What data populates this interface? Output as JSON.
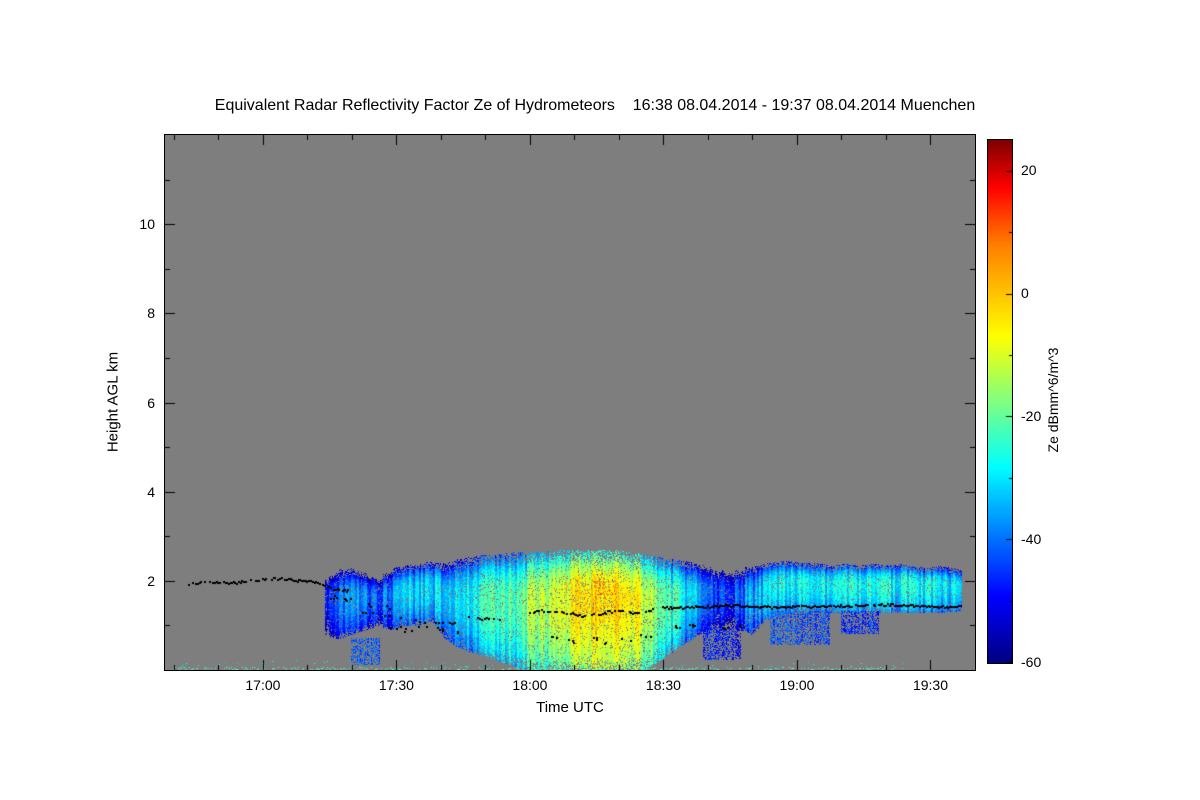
{
  "chart_data": {
    "type": "heatmap",
    "title": "Equivalent Radar Reflectivity Factor Ze of Hydrometeors    16:38 08.04.2014 - 19:37 08.04.2014 Muenchen",
    "xlabel": "Time UTC",
    "ylabel": "Height AGL km",
    "x_range_minutes": [
      998,
      1180
    ],
    "x_major_ticks": [
      {
        "t": 1020,
        "label": "17:00"
      },
      {
        "t": 1050,
        "label": "17:30"
      },
      {
        "t": 1080,
        "label": "18:00"
      },
      {
        "t": 1110,
        "label": "18:30"
      },
      {
        "t": 1140,
        "label": "19:00"
      },
      {
        "t": 1170,
        "label": "19:30"
      }
    ],
    "x_minor_step_min": 10,
    "y_range_km": [
      0,
      12
    ],
    "y_major_ticks": [
      {
        "v": 2,
        "label": "2"
      },
      {
        "v": 4,
        "label": "4"
      },
      {
        "v": 6,
        "label": "6"
      },
      {
        "v": 8,
        "label": "8"
      },
      {
        "v": 10,
        "label": "10"
      }
    ],
    "y_minor_ticks": [
      1,
      3,
      5,
      7,
      9,
      11
    ],
    "no_data_color": "#7e7e7e",
    "frame_color": "#000000",
    "colormap_stops": [
      [
        0.0,
        "#000080"
      ],
      [
        0.125,
        "#0000FF"
      ],
      [
        0.375,
        "#00FFFF"
      ],
      [
        0.625,
        "#FFFF00"
      ],
      [
        0.8,
        "#FF7F00"
      ],
      [
        0.91,
        "#FF0000"
      ],
      [
        1.0,
        "#7F0000"
      ]
    ],
    "colorbar": {
      "label": "Ze dBmm^6/m^3",
      "range": [
        -60,
        25
      ],
      "major_ticks": [
        {
          "v": 20,
          "label": "20"
        },
        {
          "v": 0,
          "label": "0"
        },
        {
          "v": -20,
          "label": "-20"
        },
        {
          "v": -40,
          "label": "-40"
        },
        {
          "v": -60,
          "label": "-60"
        }
      ],
      "minor_ticks": [
        10,
        -10,
        -30,
        -50
      ]
    },
    "echo_columns": [
      [
        1034,
        0.8,
        2.2,
        -46
      ],
      [
        1037,
        0.7,
        2.3,
        -40
      ],
      [
        1040,
        0.8,
        2.3,
        -36
      ],
      [
        1043,
        0.9,
        2.2,
        -40
      ],
      [
        1046,
        1.0,
        2.1,
        -42
      ],
      [
        1049,
        0.9,
        2.3,
        -37
      ],
      [
        1052,
        1.0,
        2.35,
        -33
      ],
      [
        1055,
        1.0,
        2.4,
        -30
      ],
      [
        1058,
        1.1,
        2.45,
        -32
      ],
      [
        1061,
        0.7,
        2.4,
        -30
      ],
      [
        1064,
        0.5,
        2.5,
        -28
      ],
      [
        1067,
        0.4,
        2.55,
        -26
      ],
      [
        1070,
        0.3,
        2.6,
        -25
      ],
      [
        1073,
        0.2,
        2.6,
        -23
      ],
      [
        1076,
        0.1,
        2.65,
        -21
      ],
      [
        1079,
        0.0,
        2.65,
        -18
      ],
      [
        1082,
        0.0,
        2.65,
        -14
      ],
      [
        1085,
        0.0,
        2.7,
        -11
      ],
      [
        1088,
        0.0,
        2.7,
        -8
      ],
      [
        1091,
        0.0,
        2.7,
        -5
      ],
      [
        1094,
        0.0,
        2.7,
        -4
      ],
      [
        1097,
        0.0,
        2.7,
        -3
      ],
      [
        1100,
        0.0,
        2.7,
        -5
      ],
      [
        1103,
        0.0,
        2.65,
        -8
      ],
      [
        1106,
        0.0,
        2.6,
        -11
      ],
      [
        1109,
        0.2,
        2.55,
        -17
      ],
      [
        1112,
        0.4,
        2.5,
        -24
      ],
      [
        1115,
        0.6,
        2.45,
        -31
      ],
      [
        1118,
        0.8,
        2.4,
        -37
      ],
      [
        1121,
        0.9,
        2.35,
        -42
      ],
      [
        1124,
        1.0,
        2.3,
        -46
      ],
      [
        1127,
        0.9,
        2.3,
        -41
      ],
      [
        1130,
        0.8,
        2.35,
        -36
      ],
      [
        1133,
        1.1,
        2.4,
        -31
      ],
      [
        1136,
        1.25,
        2.45,
        -28
      ],
      [
        1139,
        1.3,
        2.45,
        -27
      ],
      [
        1142,
        1.3,
        2.4,
        -28
      ],
      [
        1145,
        1.3,
        2.4,
        -29
      ],
      [
        1148,
        1.3,
        2.35,
        -28
      ],
      [
        1151,
        1.3,
        2.4,
        -27
      ],
      [
        1154,
        1.3,
        2.35,
        -28
      ],
      [
        1157,
        1.3,
        2.4,
        -29
      ],
      [
        1160,
        1.3,
        2.35,
        -28
      ],
      [
        1163,
        1.3,
        2.4,
        -27
      ],
      [
        1166,
        1.3,
        2.35,
        -28
      ],
      [
        1169,
        1.3,
        2.3,
        -29
      ],
      [
        1172,
        1.3,
        2.35,
        -28
      ],
      [
        1175,
        1.3,
        2.3,
        -30
      ],
      [
        1177,
        1.35,
        2.25,
        -33
      ]
    ],
    "echo_patches": [
      [
        1134,
        1147,
        0.6,
        1.32,
        -43
      ],
      [
        1150,
        1158,
        0.85,
        1.32,
        -46
      ],
      [
        1119,
        1127,
        0.25,
        0.95,
        -48
      ],
      [
        1040,
        1046,
        0.15,
        0.7,
        -42
      ]
    ],
    "hotspots": [
      [
        1090,
        1.9,
        2
      ],
      [
        1093,
        1.5,
        5
      ],
      [
        1096,
        2.0,
        3
      ],
      [
        1098,
        1.35,
        6
      ],
      [
        1101,
        1.7,
        0
      ],
      [
        1087,
        1.2,
        -2
      ],
      [
        1097,
        1.85,
        11
      ],
      [
        1094,
        0.15,
        -6
      ],
      [
        1099,
        0.1,
        -4
      ]
    ],
    "surface_layer": {
      "t0": 1000,
      "t1": 1164,
      "top_km": 0.22
    },
    "gray_patches": [
      [
        1098,
        1118,
        0.95,
        1.25
      ],
      [
        1112,
        1122,
        1.25,
        1.5
      ]
    ],
    "black_segments": [
      {
        "d": 0.8,
        "pts": [
          [
            1003,
            1.93
          ],
          [
            1008,
            1.97
          ],
          [
            1013,
            1.94
          ],
          [
            1018,
            2.0
          ],
          [
            1023,
            2.05
          ],
          [
            1028,
            2.0
          ],
          [
            1032,
            1.97
          ],
          [
            1036,
            1.8
          ],
          [
            1040,
            1.76
          ]
        ]
      },
      {
        "d": 0.35,
        "pts": [
          [
            1042,
            1.32
          ],
          [
            1047,
            1.22
          ],
          [
            1052,
            1.12
          ],
          [
            1058,
            1.07
          ],
          [
            1064,
            1.02
          ]
        ]
      },
      {
        "d": 0.3,
        "pts": [
          [
            1066,
            1.18
          ],
          [
            1072,
            1.12
          ],
          [
            1077,
            1.16
          ]
        ]
      },
      {
        "d": 0.7,
        "pts": [
          [
            1080,
            1.28
          ],
          [
            1084,
            1.33
          ],
          [
            1088,
            1.28
          ],
          [
            1092,
            1.2
          ],
          [
            1096,
            1.26
          ],
          [
            1100,
            1.33
          ],
          [
            1104,
            1.28
          ],
          [
            1108,
            1.36
          ]
        ]
      },
      {
        "d": 0.95,
        "pts": [
          [
            1110,
            1.38
          ],
          [
            1118,
            1.41
          ],
          [
            1126,
            1.43
          ],
          [
            1134,
            1.4
          ],
          [
            1142,
            1.42
          ],
          [
            1150,
            1.43
          ],
          [
            1158,
            1.46
          ],
          [
            1166,
            1.44
          ],
          [
            1172,
            1.4
          ],
          [
            1177,
            1.42
          ]
        ]
      }
    ],
    "black_scatter": [
      [
        1036,
        1.62
      ],
      [
        1039,
        1.57
      ],
      [
        1044,
        1.46
      ],
      [
        1048,
        1.4
      ],
      [
        1050,
        0.93
      ],
      [
        1053,
        0.88
      ],
      [
        1056,
        0.95
      ],
      [
        1060,
        0.9
      ],
      [
        1063,
        0.85
      ],
      [
        1086,
        0.72
      ],
      [
        1090,
        0.65
      ],
      [
        1094,
        0.7
      ],
      [
        1098,
        0.62
      ],
      [
        1102,
        0.68
      ],
      [
        1106,
        0.76
      ],
      [
        1113,
        0.96
      ],
      [
        1117,
        1.0
      ],
      [
        1124,
        0.94
      ],
      [
        1128,
        0.98
      ]
    ]
  }
}
